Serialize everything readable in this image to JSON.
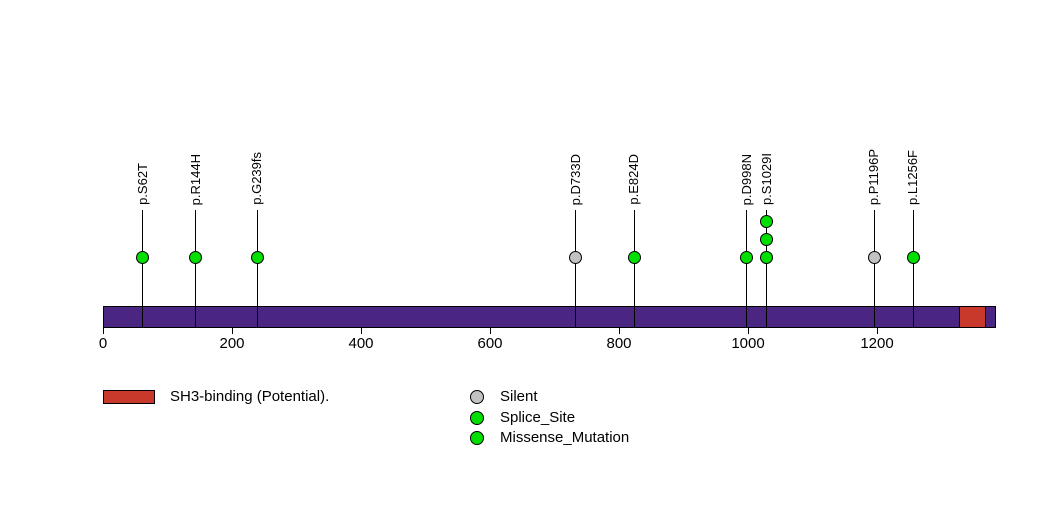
{
  "chart_data": {
    "type": "scatter",
    "subtype": "lollipop_mutation_diagram",
    "title": "",
    "xlabel": "",
    "ylabel": "",
    "x_ticks": [
      "0",
      "200",
      "400",
      "600",
      "800",
      "1000",
      "1200"
    ],
    "x_tick_values": [
      0,
      200,
      400,
      600,
      800,
      1000,
      1200
    ],
    "xlim": [
      0,
      1385
    ],
    "track": {
      "start": 0,
      "end": 1385
    },
    "mutations": [
      {
        "label": "p.S62T",
        "position": 62,
        "count": 1,
        "fill": "green"
      },
      {
        "label": "p.R144H",
        "position": 144,
        "count": 1,
        "fill": "green"
      },
      {
        "label": "p.G239fs",
        "position": 239,
        "count": 1,
        "fill": "green"
      },
      {
        "label": "p.D733D",
        "position": 733,
        "count": 1,
        "fill": "gray"
      },
      {
        "label": "p.E824D",
        "position": 824,
        "count": 1,
        "fill": "green"
      },
      {
        "label": "p.D998N",
        "position": 998,
        "count": 1,
        "fill": "green"
      },
      {
        "label": "p.S1029I",
        "position": 1029,
        "count": 3,
        "fill": "green"
      },
      {
        "label": "p.P1196P",
        "position": 1196,
        "count": 1,
        "fill": "gray"
      },
      {
        "label": "p.L1256F",
        "position": 1256,
        "count": 1,
        "fill": "green"
      }
    ],
    "domains": [
      {
        "name": "SH3-binding (Potential).",
        "start": 1327,
        "end": 1369,
        "fill": "red"
      }
    ],
    "legend": [
      {
        "label": "Silent",
        "fill": "gray"
      },
      {
        "label": "Splice_Site",
        "fill": "green"
      },
      {
        "label": "Missense_Mutation",
        "fill": "green"
      }
    ],
    "colors": {
      "green": "#00DF00",
      "gray": "#C2C2C2",
      "red": "#C8392C",
      "track": "#4A2581",
      "outline": "#000000"
    },
    "legend_position": "bottom",
    "grid": false
  }
}
